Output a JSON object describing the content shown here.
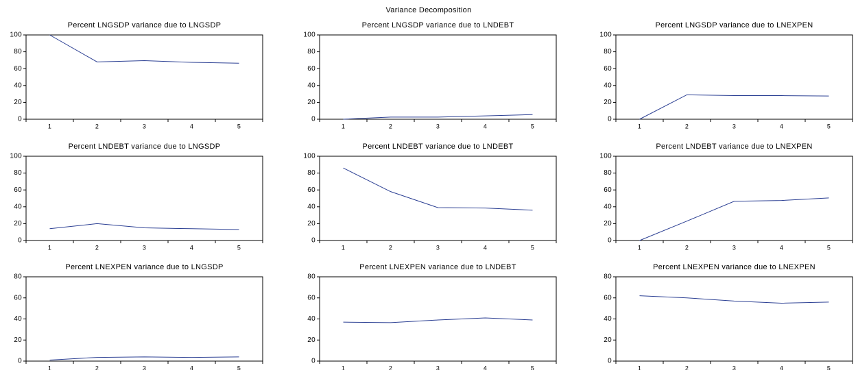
{
  "title": "Variance Decomposition",
  "chart_data": [
    {
      "type": "line",
      "title": "Percent LNGSDP variance due to LNGSDP",
      "categories": [
        "1",
        "2",
        "3",
        "4",
        "5"
      ],
      "values": [
        100,
        68,
        69.5,
        67.5,
        66.5
      ],
      "color": "#2b3f93",
      "ylim": [
        0,
        100
      ],
      "yticks": [
        0,
        20,
        40,
        60,
        80,
        100
      ]
    },
    {
      "type": "line",
      "title": "Percent LNGSDP variance due to LNDEBT",
      "categories": [
        "1",
        "2",
        "3",
        "4",
        "5"
      ],
      "values": [
        0,
        2.5,
        2.5,
        4,
        5.5
      ],
      "color": "#2b3f93",
      "ylim": [
        0,
        100
      ],
      "yticks": [
        0,
        20,
        40,
        60,
        80,
        100
      ]
    },
    {
      "type": "line",
      "title": "Percent LNGSDP variance due to LNEXPEN",
      "categories": [
        "1",
        "2",
        "3",
        "4",
        "5"
      ],
      "values": [
        0,
        29,
        28,
        28,
        27.5
      ],
      "color": "#2b3f93",
      "ylim": [
        0,
        100
      ],
      "yticks": [
        0,
        20,
        40,
        60,
        80,
        100
      ]
    },
    {
      "type": "line",
      "title": "Percent LNDEBT variance due to LNGSDP",
      "categories": [
        "1",
        "2",
        "3",
        "4",
        "5"
      ],
      "values": [
        14,
        20,
        15,
        14,
        13
      ],
      "color": "#2b3f93",
      "ylim": [
        0,
        100
      ],
      "yticks": [
        0,
        20,
        40,
        60,
        80,
        100
      ]
    },
    {
      "type": "line",
      "title": "Percent LNDEBT variance due to LNDEBT",
      "categories": [
        "1",
        "2",
        "3",
        "4",
        "5"
      ],
      "values": [
        86,
        58,
        39,
        38.5,
        36
      ],
      "color": "#2b3f93",
      "ylim": [
        0,
        100
      ],
      "yticks": [
        0,
        20,
        40,
        60,
        80,
        100
      ]
    },
    {
      "type": "line",
      "title": "Percent LNDEBT variance due to LNEXPEN",
      "categories": [
        "1",
        "2",
        "3",
        "4",
        "5"
      ],
      "values": [
        0,
        23,
        46.5,
        47.5,
        50.5
      ],
      "color": "#2b3f93",
      "ylim": [
        0,
        100
      ],
      "yticks": [
        0,
        20,
        40,
        60,
        80,
        100
      ]
    },
    {
      "type": "line",
      "title": "Percent LNEXPEN variance due to LNGSDP",
      "categories": [
        "1",
        "2",
        "3",
        "4",
        "5"
      ],
      "values": [
        1,
        3.5,
        4,
        3.5,
        4
      ],
      "color": "#2b3f93",
      "ylim": [
        0,
        80
      ],
      "yticks": [
        0,
        20,
        40,
        60,
        80
      ]
    },
    {
      "type": "line",
      "title": "Percent LNEXPEN variance due to LNDEBT",
      "categories": [
        "1",
        "2",
        "3",
        "4",
        "5"
      ],
      "values": [
        37,
        36.5,
        39,
        41,
        39
      ],
      "color": "#2b3f93",
      "ylim": [
        0,
        80
      ],
      "yticks": [
        0,
        20,
        40,
        60,
        80
      ]
    },
    {
      "type": "line",
      "title": "Percent LNEXPEN variance due to LNEXPEN",
      "categories": [
        "1",
        "2",
        "3",
        "4",
        "5"
      ],
      "values": [
        62,
        60,
        57,
        55,
        56
      ],
      "color": "#2b3f93",
      "ylim": [
        0,
        80
      ],
      "yticks": [
        0,
        20,
        40,
        60,
        80
      ]
    }
  ]
}
